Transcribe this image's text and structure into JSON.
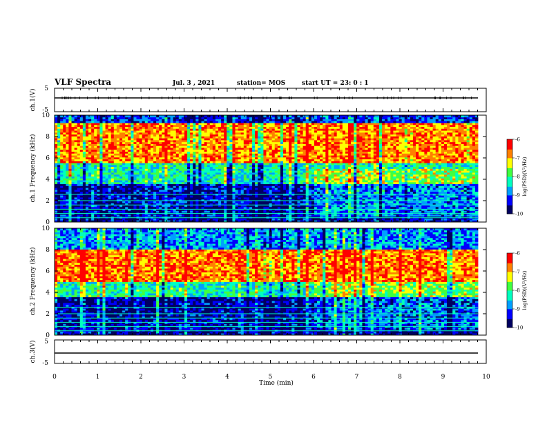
{
  "header": {
    "title": "VLF Spectra",
    "date": "Jul. 3 , 2021",
    "station": "station= MOS",
    "start": "start UT = 23: 0 : 1"
  },
  "colors": {
    "scale": [
      "#000060",
      "#0000ff",
      "#00a0ff",
      "#00ffc0",
      "#40ff40",
      "#ffff00",
      "#ff8000",
      "#ff0000",
      "#ffffff"
    ]
  },
  "chart_data": [
    {
      "type": "line",
      "name": "ch1-waveform",
      "ylabel": "ch.1(V)",
      "ylim": [
        -5,
        5
      ],
      "yticks": [
        "5",
        "-5"
      ],
      "x": [
        0,
        10
      ],
      "values": [
        0,
        0
      ]
    },
    {
      "type": "heatmap",
      "name": "ch1-spectrogram",
      "ylabel": "ch.1 Frequency (kHz)",
      "ylim": [
        0,
        10
      ],
      "yticks": [
        "0",
        "2",
        "4",
        "6",
        "8",
        "10"
      ],
      "xlim": [
        0,
        10
      ],
      "colorbar": {
        "label": "log(PSD)(V²/Hz)",
        "range": [
          -10,
          -6
        ],
        "ticks": [
          "-6",
          "-7",
          "-8",
          "-9",
          "-10"
        ]
      },
      "description_bands": [
        {
          "freq": [
            0,
            3.5
          ],
          "level": -9.5
        },
        {
          "freq": [
            3.5,
            5.5
          ],
          "level": -8.2
        },
        {
          "freq": [
            5.5,
            9.2
          ],
          "level": -6.8
        },
        {
          "freq": [
            9.2,
            10
          ],
          "level": -9.2
        }
      ]
    },
    {
      "type": "heatmap",
      "name": "ch2-spectrogram",
      "ylabel": "ch.2 Frequency (kHz)",
      "ylim": [
        0,
        10
      ],
      "yticks": [
        "0",
        "2",
        "4",
        "6",
        "8",
        "10"
      ],
      "xlim": [
        0,
        10
      ],
      "colorbar": {
        "label": "log(PSD)(V²/Hz)",
        "range": [
          -10,
          -6
        ],
        "ticks": [
          "-6",
          "-7",
          "-8",
          "-9",
          "-10"
        ]
      },
      "description_bands": [
        {
          "freq": [
            0,
            3.5
          ],
          "level": -9.6
        },
        {
          "freq": [
            3.5,
            5.0
          ],
          "level": -8.2
        },
        {
          "freq": [
            5.0,
            8.0
          ],
          "level": -6.7
        },
        {
          "freq": [
            8.0,
            10
          ],
          "level": -8.8
        }
      ]
    },
    {
      "type": "line",
      "name": "ch3-waveform",
      "ylabel": "ch.3(V)",
      "ylim": [
        -5,
        5
      ],
      "yticks": [
        "5",
        "-5"
      ],
      "x": [
        0,
        10
      ],
      "values": [
        0,
        0
      ]
    }
  ],
  "xaxis": {
    "label": "Time (min)",
    "ticks": [
      "0",
      "1",
      "2",
      "3",
      "4",
      "5",
      "6",
      "7",
      "8",
      "9",
      "10"
    ]
  }
}
